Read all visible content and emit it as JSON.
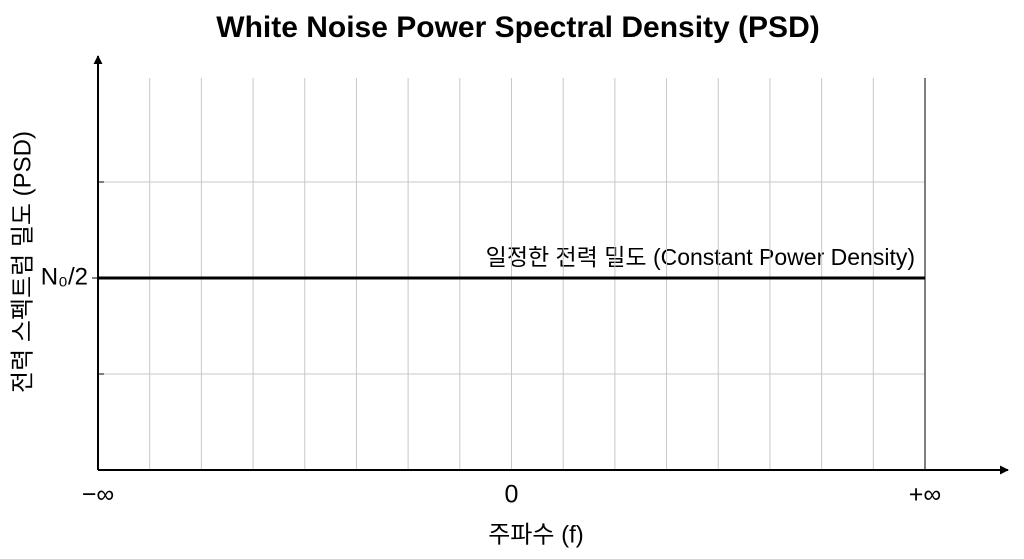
{
  "chart_data": {
    "type": "line",
    "title": "White Noise Power Spectral Density (PSD)",
    "xlabel": "주파수 (f)",
    "ylabel": "전력 스펙트럼 밀도 (PSD)",
    "annotation": "일정한 전력 밀도 (Constant Power Density)",
    "x": [
      -8,
      8
    ],
    "series": [
      {
        "name": "PSD",
        "color": "#000000",
        "values": [
          2,
          2
        ]
      }
    ],
    "xlim": [
      -8,
      8
    ],
    "xticks": [
      {
        "value": -8,
        "label": "−∞"
      },
      0,
      {
        "value": 8,
        "label": "+∞"
      }
    ],
    "xminorticks": [
      -7,
      -6,
      -5,
      -4,
      -3,
      -2,
      -1,
      1,
      2,
      3,
      4,
      5,
      6,
      7
    ],
    "ylim": [
      0,
      4
    ],
    "yticks": [
      {
        "value": 2,
        "label": "N₀/2"
      }
    ],
    "yminorticks": [
      1,
      3
    ],
    "grid": true
  }
}
